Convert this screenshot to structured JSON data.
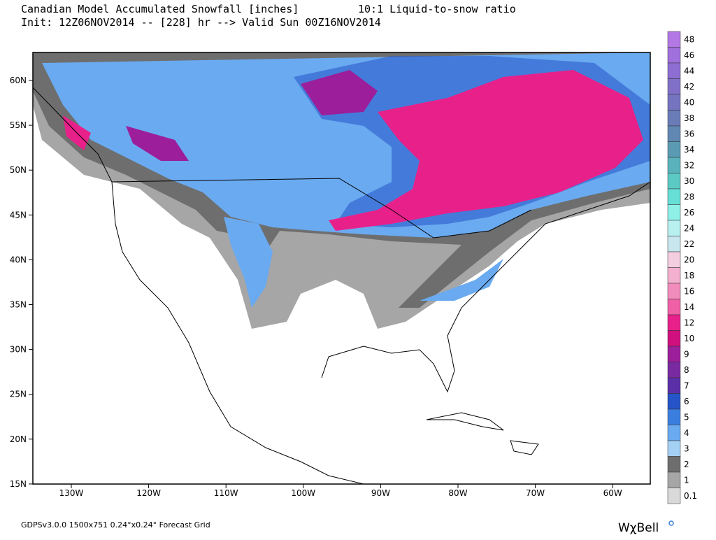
{
  "header": {
    "title": "Canadian Model Accumulated Snowfall [inches]",
    "ratio": "10:1 Liquid-to-snow ratio",
    "init": "Init: 12Z06NOV2014 -- [228] hr --> Valid Sun 00Z16NOV2014"
  },
  "axes": {
    "lat_labels": [
      "60N",
      "55N",
      "50N",
      "45N",
      "40N",
      "35N",
      "30N",
      "25N",
      "20N",
      "15N"
    ],
    "lon_labels": [
      "130W",
      "120W",
      "110W",
      "100W",
      "90W",
      "80W",
      "70W",
      "60W"
    ]
  },
  "legend": {
    "levels": [
      {
        "label": "48",
        "color": "#b478e6"
      },
      {
        "label": "46",
        "color": "#a070dc"
      },
      {
        "label": "44",
        "color": "#8e6ed2"
      },
      {
        "label": "42",
        "color": "#8070c8"
      },
      {
        "label": "40",
        "color": "#7474c0"
      },
      {
        "label": "38",
        "color": "#6a7cb8"
      },
      {
        "label": "36",
        "color": "#6088b2"
      },
      {
        "label": "34",
        "color": "#5a9ab2"
      },
      {
        "label": "32",
        "color": "#5ab2bc"
      },
      {
        "label": "30",
        "color": "#5ccac4"
      },
      {
        "label": "28",
        "color": "#66e0d6"
      },
      {
        "label": "26",
        "color": "#8ef0e6"
      },
      {
        "label": "24",
        "color": "#b8f0f0"
      },
      {
        "label": "22",
        "color": "#c8e6ee"
      },
      {
        "label": "20",
        "color": "#f3cde0"
      },
      {
        "label": "18",
        "color": "#f4b0cf"
      },
      {
        "label": "16",
        "color": "#f28cbc"
      },
      {
        "label": "14",
        "color": "#f060a6"
      },
      {
        "label": "12",
        "color": "#e8208a"
      },
      {
        "label": "10",
        "color": "#d0107e"
      },
      {
        "label": "9",
        "color": "#9c1e9a"
      },
      {
        "label": "8",
        "color": "#7a2aa0"
      },
      {
        "label": "7",
        "color": "#5a2fa8"
      },
      {
        "label": "6",
        "color": "#2553c8"
      },
      {
        "label": "5",
        "color": "#3a7fe0"
      },
      {
        "label": "4",
        "color": "#6aaaf0"
      },
      {
        "label": "3",
        "color": "#a5d0f5"
      },
      {
        "label": "2",
        "color": "#6e6e6e"
      },
      {
        "label": "1",
        "color": "#a6a6a6"
      },
      {
        "label": "0.1",
        "color": "#d9d9d9"
      }
    ]
  },
  "footer": {
    "grid_info": "GDPSv3.0.0 1500x751 0.24°x0.24° Forecast Grid",
    "logo": "WχBell"
  }
}
